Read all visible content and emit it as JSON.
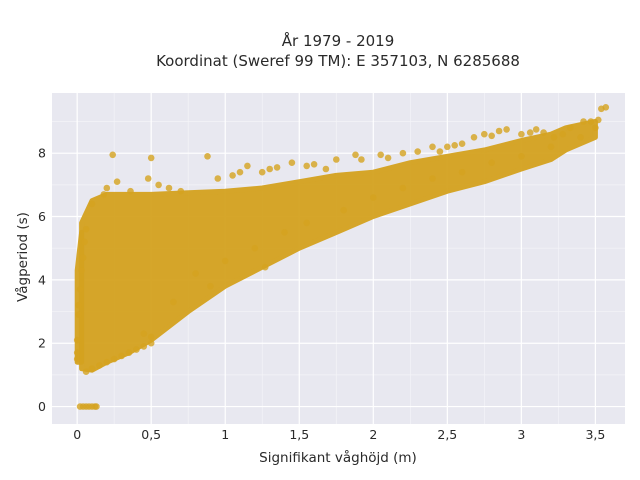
{
  "chart_data": {
    "type": "scatter",
    "title": "År 1979 - 2019",
    "subtitle": "Koordinat (Sweref 99 TM): E 357103, N 6285688",
    "xlabel": "Signifikant våghöjd (m)",
    "ylabel": "Vågperiod (s)",
    "xlim": [
      -0.17,
      3.7
    ],
    "ylim": [
      -0.55,
      9.9
    ],
    "xticks": [
      0,
      0.5,
      1,
      1.5,
      2,
      2.5,
      3,
      3.5
    ],
    "xtick_labels": [
      "0",
      "0,5",
      "1",
      "1,5",
      "2",
      "2,5",
      "3",
      "3,5"
    ],
    "yticks": [
      0,
      2,
      4,
      6,
      8
    ],
    "ytick_labels": [
      "0",
      "2",
      "4",
      "6",
      "8"
    ],
    "grid": true,
    "colors": {
      "marker": "#d4a21f",
      "plot_bg": "#e8e8f0",
      "grid": "#ffffff"
    },
    "series": [
      {
        "values_note": "",
        "points": [
          [
            0.02,
            0
          ],
          [
            0.04,
            0
          ],
          [
            0.06,
            0
          ],
          [
            0.08,
            0
          ],
          [
            0.1,
            0
          ],
          [
            0.12,
            0
          ],
          [
            0.13,
            0
          ],
          [
            0.0,
            1.5
          ],
          [
            0.0,
            1.7
          ],
          [
            0.0,
            2.1
          ],
          [
            0.01,
            2.9
          ],
          [
            0.01,
            3.2
          ],
          [
            0.02,
            3.7
          ],
          [
            0.03,
            4.3
          ],
          [
            0.04,
            4.7
          ],
          [
            0.05,
            5.2
          ],
          [
            0.06,
            5.6
          ],
          [
            0.06,
            1.1
          ],
          [
            0.1,
            1.2
          ],
          [
            0.15,
            1.3
          ],
          [
            0.2,
            1.4
          ],
          [
            0.25,
            1.5
          ],
          [
            0.3,
            1.6
          ],
          [
            0.35,
            1.7
          ],
          [
            0.4,
            1.8
          ],
          [
            0.45,
            1.9
          ],
          [
            0.5,
            2.0
          ],
          [
            0.5,
            2.2
          ],
          [
            0.45,
            2.3
          ],
          [
            0.1,
            6.4
          ],
          [
            0.18,
            6.7
          ],
          [
            0.2,
            6.9
          ],
          [
            0.24,
            7.95
          ],
          [
            0.27,
            7.1
          ],
          [
            0.36,
            6.8
          ],
          [
            0.48,
            7.2
          ],
          [
            0.5,
            7.85
          ],
          [
            0.55,
            7.0
          ],
          [
            0.62,
            6.9
          ],
          [
            0.7,
            6.8
          ],
          [
            0.88,
            7.9
          ],
          [
            0.95,
            7.2
          ],
          [
            1.05,
            7.3
          ],
          [
            1.1,
            7.4
          ],
          [
            1.15,
            7.6
          ],
          [
            1.25,
            7.4
          ],
          [
            1.3,
            7.5
          ],
          [
            1.35,
            7.55
          ],
          [
            1.45,
            7.7
          ],
          [
            1.55,
            7.6
          ],
          [
            1.6,
            7.65
          ],
          [
            1.68,
            7.5
          ],
          [
            1.75,
            7.8
          ],
          [
            1.88,
            7.95
          ],
          [
            1.92,
            7.8
          ],
          [
            2.05,
            7.95
          ],
          [
            2.1,
            7.85
          ],
          [
            2.2,
            8.0
          ],
          [
            2.3,
            8.05
          ],
          [
            2.4,
            8.2
          ],
          [
            2.45,
            8.05
          ],
          [
            2.5,
            8.2
          ],
          [
            2.55,
            8.25
          ],
          [
            2.6,
            8.3
          ],
          [
            2.68,
            8.5
          ],
          [
            2.75,
            8.6
          ],
          [
            2.8,
            8.55
          ],
          [
            2.85,
            8.7
          ],
          [
            2.9,
            8.75
          ],
          [
            3.0,
            8.6
          ],
          [
            3.06,
            8.65
          ],
          [
            3.1,
            8.75
          ],
          [
            3.15,
            8.65
          ],
          [
            3.22,
            8.5
          ],
          [
            3.28,
            8.6
          ],
          [
            3.33,
            8.8
          ],
          [
            3.42,
            9.0
          ],
          [
            3.47,
            9.0
          ],
          [
            3.52,
            9.05
          ],
          [
            3.54,
            9.4
          ],
          [
            3.57,
            9.45
          ],
          [
            0.8,
            4.2
          ],
          [
            1.0,
            4.6
          ],
          [
            1.2,
            5.0
          ],
          [
            1.4,
            5.5
          ],
          [
            1.55,
            5.8
          ],
          [
            1.8,
            6.2
          ],
          [
            2.0,
            6.6
          ],
          [
            2.2,
            6.9
          ],
          [
            2.4,
            7.2
          ],
          [
            2.6,
            7.4
          ],
          [
            2.8,
            7.7
          ],
          [
            3.0,
            7.9
          ],
          [
            3.2,
            8.2
          ],
          [
            3.4,
            8.5
          ],
          [
            3.5,
            8.8
          ],
          [
            1.27,
            4.4
          ],
          [
            0.9,
            3.8
          ],
          [
            0.65,
            3.3
          ]
        ]
      }
    ],
    "bands": [
      {
        "x": [
          0.0,
          0.03
        ],
        "y_low": [
          1.4,
          1.4
        ],
        "y_high": [
          4.3,
          5.5
        ]
      },
      {
        "x": [
          0.03,
          0.1,
          0.2,
          0.35,
          0.5,
          0.75,
          1.0,
          1.25,
          1.5,
          1.75,
          2.0,
          2.25,
          2.5,
          2.75,
          3.0,
          3.2,
          3.3,
          3.5
        ],
        "y_low": [
          1.2,
          1.15,
          1.4,
          1.7,
          2.1,
          3.0,
          3.8,
          4.4,
          5.0,
          5.5,
          6.0,
          6.4,
          6.8,
          7.1,
          7.5,
          7.8,
          8.1,
          8.5
        ],
        "y_high": [
          5.8,
          6.5,
          6.7,
          6.7,
          6.7,
          6.75,
          6.8,
          6.9,
          7.1,
          7.3,
          7.4,
          7.7,
          7.9,
          8.1,
          8.4,
          8.6,
          8.8,
          9.0
        ]
      }
    ]
  }
}
